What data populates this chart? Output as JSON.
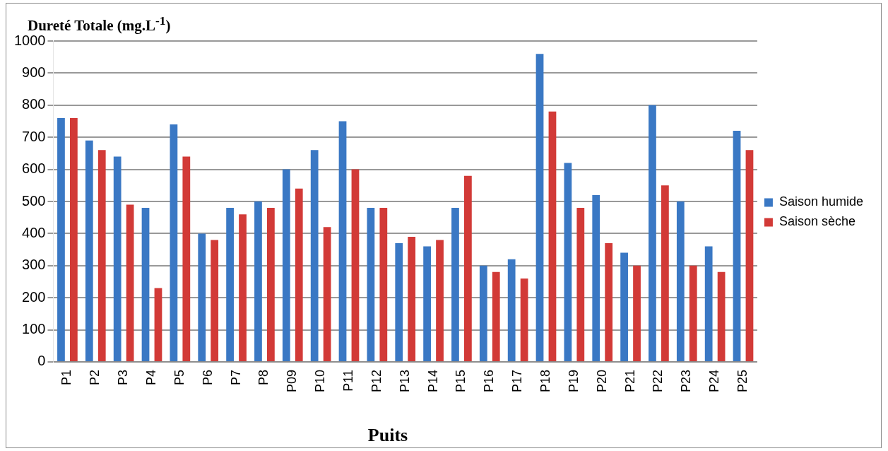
{
  "chart_data": {
    "type": "bar",
    "ylabel": "Dureté Totale (mg.L$^{-1}$)",
    "xlabel": "Puits",
    "categories": [
      "P1",
      "P2",
      "P3",
      "P4",
      "P5",
      "P6",
      "P7",
      "P8",
      "P09",
      "P10",
      "P11",
      "P12",
      "P13",
      "P14",
      "P15",
      "P16",
      "P17",
      "P18",
      "P19",
      "P20",
      "P21",
      "P22",
      "P23",
      "P24",
      "P25"
    ],
    "series": [
      {
        "name": "Saison humide",
        "color": "#3a78c4",
        "values": [
          760,
          690,
          640,
          480,
          740,
          400,
          480,
          500,
          600,
          660,
          750,
          480,
          370,
          360,
          480,
          300,
          320,
          960,
          620,
          520,
          340,
          800,
          500,
          360,
          720
        ]
      },
      {
        "name": "Saison sèche",
        "color": "#d23a37",
        "values": [
          760,
          660,
          490,
          230,
          640,
          380,
          460,
          480,
          540,
          420,
          600,
          480,
          390,
          380,
          580,
          280,
          260,
          780,
          480,
          370,
          300,
          550,
          300,
          280,
          660
        ]
      }
    ],
    "ylim": [
      0,
      1000
    ],
    "yticks": [
      0,
      100,
      200,
      300,
      400,
      500,
      600,
      700,
      800,
      900,
      1000
    ],
    "grid": "y",
    "legend": "right"
  }
}
